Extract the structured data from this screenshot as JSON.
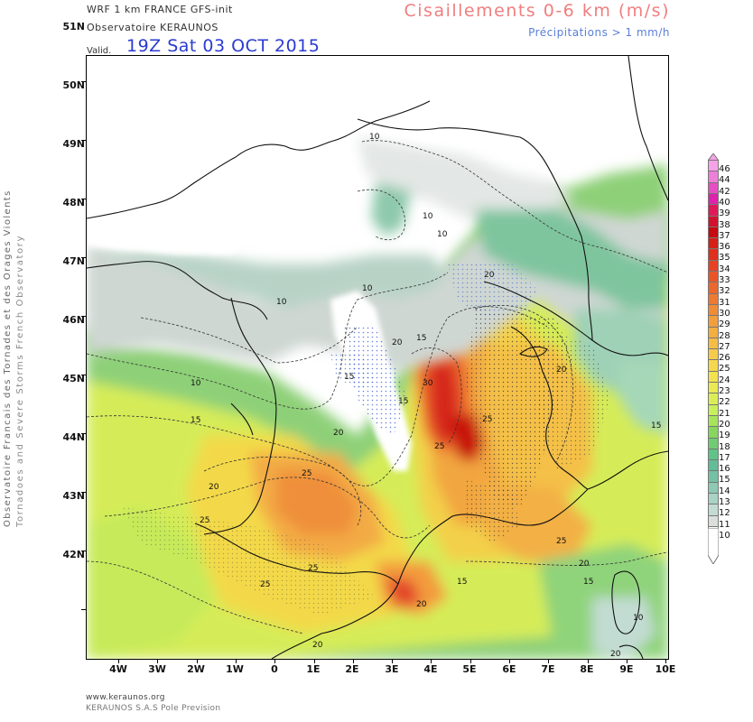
{
  "header": {
    "model_line": "WRF 1 km FRANCE   GFS-init",
    "observatory": "Observatoire KERAUNOS",
    "valid_label": "Valid.",
    "valid_time": "19Z Sat 03 OCT 2015",
    "parameter": "Cisaillements 0-6 km (m/s)",
    "precip_note": "Précipitations > 1 mm/h"
  },
  "side_text": {
    "line1": "Observatoire Francais des Tornades et des Orages Violents",
    "line2": "Tornadoes and Severe Storms French Observatory"
  },
  "axes": {
    "latitudes": [
      "51N",
      "50N",
      "49N",
      "48N",
      "47N",
      "46N",
      "45N",
      "44N",
      "43N",
      "42N"
    ],
    "longitudes": [
      "4W",
      "3W",
      "2W",
      "1W",
      "0",
      "1E",
      "2E",
      "3E",
      "4E",
      "5E",
      "6E",
      "7E",
      "8E",
      "9E",
      "10E"
    ]
  },
  "colorbar": {
    "levels": [
      "46",
      "44",
      "42",
      "40",
      "39",
      "38",
      "37",
      "36",
      "35",
      "34",
      "33",
      "32",
      "31",
      "30",
      "29",
      "28",
      "27",
      "26",
      "25",
      "24",
      "23",
      "22",
      "21",
      "20",
      "19",
      "18",
      "17",
      "16",
      "15",
      "14",
      "13",
      "12",
      "11",
      "10"
    ],
    "colors": [
      "#f5a3e6",
      "#ee7fd8",
      "#e64fc4",
      "#dd22ae",
      "#e0185a",
      "#d3102e",
      "#c8090f",
      "#d61f16",
      "#e0301e",
      "#e84224",
      "#ea5528",
      "#ec672d",
      "#ee7a32",
      "#f08c36",
      "#f29e3b",
      "#f3ae40",
      "#f4bd45",
      "#f5cb49",
      "#f6d74d",
      "#f3e250",
      "#eaea52",
      "#dbee55",
      "#c7f05a",
      "#a8e45a",
      "#87d65f",
      "#6fcc72",
      "#5fc487",
      "#62bd99",
      "#73c2a6",
      "#8dc9b3",
      "#a9d3c4",
      "#c3dcd3",
      "#dadfdc",
      "#ffffff"
    ]
  },
  "contour_labels": [
    "10",
    "10",
    "10",
    "10",
    "10",
    "10",
    "10",
    "15",
    "15",
    "15",
    "15",
    "15",
    "15",
    "15",
    "20",
    "20",
    "20",
    "20",
    "20",
    "20",
    "20",
    "20",
    "20",
    "25",
    "25",
    "25",
    "25",
    "25",
    "25",
    "25",
    "30"
  ],
  "footer": {
    "url": "www.keraunos.org",
    "company": "KERAUNOS S.A.S Pole Prevision"
  }
}
